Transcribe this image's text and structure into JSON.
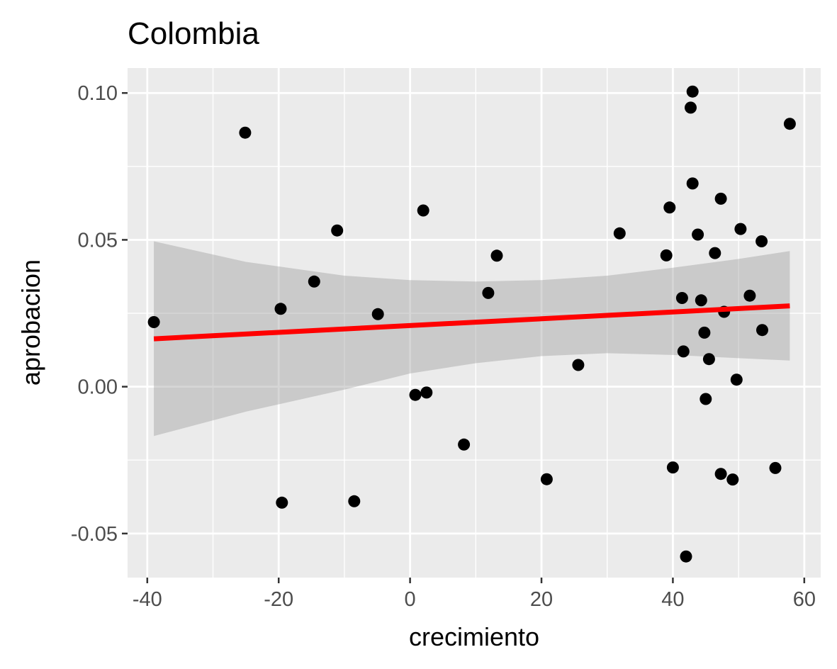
{
  "chart_data": {
    "type": "scatter",
    "title": "Colombia",
    "xlabel": "crecimiento",
    "ylabel": "aprobacion",
    "xlim": [
      -43,
      62.5
    ],
    "ylim": [
      -0.065,
      0.1085
    ],
    "x_ticks": [
      -40,
      -20,
      0,
      20,
      40,
      60
    ],
    "x_tick_labels": [
      "-40",
      "-20",
      "0",
      "20",
      "40",
      "60"
    ],
    "y_ticks": [
      -0.05,
      0.0,
      0.05,
      0.1
    ],
    "y_tick_labels": [
      "-0.05",
      "0.00",
      "0.05",
      "0.10"
    ],
    "grid": true,
    "points": [
      {
        "x": -39,
        "y": 0.022
      },
      {
        "x": -25.1,
        "y": 0.0865
      },
      {
        "x": -19.7,
        "y": 0.0265
      },
      {
        "x": -19.5,
        "y": -0.0395
      },
      {
        "x": -14.6,
        "y": 0.0358
      },
      {
        "x": -11.1,
        "y": 0.0532
      },
      {
        "x": -8.5,
        "y": -0.039
      },
      {
        "x": -4.9,
        "y": 0.0247
      },
      {
        "x": 0.8,
        "y": -0.0028
      },
      {
        "x": 2.0,
        "y": 0.06
      },
      {
        "x": 2.5,
        "y": -0.002
      },
      {
        "x": 8.2,
        "y": -0.0197
      },
      {
        "x": 11.9,
        "y": 0.0319
      },
      {
        "x": 13.2,
        "y": 0.0446
      },
      {
        "x": 20.8,
        "y": -0.0315
      },
      {
        "x": 25.6,
        "y": 0.0074
      },
      {
        "x": 31.9,
        "y": 0.0522
      },
      {
        "x": 39.0,
        "y": 0.0447
      },
      {
        "x": 39.5,
        "y": 0.061
      },
      {
        "x": 40.0,
        "y": -0.0275
      },
      {
        "x": 41.4,
        "y": 0.0302
      },
      {
        "x": 41.6,
        "y": 0.012
      },
      {
        "x": 42.0,
        "y": -0.0578
      },
      {
        "x": 42.7,
        "y": 0.095
      },
      {
        "x": 43.0,
        "y": 0.1005
      },
      {
        "x": 43.0,
        "y": 0.0692
      },
      {
        "x": 43.8,
        "y": 0.0518
      },
      {
        "x": 44.3,
        "y": 0.0294
      },
      {
        "x": 44.8,
        "y": 0.0184
      },
      {
        "x": 45.0,
        "y": -0.0042
      },
      {
        "x": 45.5,
        "y": 0.0094
      },
      {
        "x": 46.4,
        "y": 0.0455
      },
      {
        "x": 47.3,
        "y": -0.0297
      },
      {
        "x": 47.3,
        "y": 0.064
      },
      {
        "x": 47.8,
        "y": 0.0255
      },
      {
        "x": 49.1,
        "y": -0.0316
      },
      {
        "x": 49.7,
        "y": 0.0024
      },
      {
        "x": 50.3,
        "y": 0.0537
      },
      {
        "x": 51.7,
        "y": 0.031
      },
      {
        "x": 53.5,
        "y": 0.0495
      },
      {
        "x": 53.6,
        "y": 0.0193
      },
      {
        "x": 55.6,
        "y": -0.0277
      },
      {
        "x": 57.8,
        "y": 0.0895
      }
    ],
    "fit_line": {
      "x": [
        -39,
        57.8
      ],
      "y": [
        0.0163,
        0.0275
      ]
    },
    "confidence_band": {
      "x": [
        -39,
        -25,
        -10,
        0,
        10,
        20,
        30,
        40,
        50,
        57.8
      ],
      "upper": [
        0.0495,
        0.0425,
        0.0378,
        0.0363,
        0.0358,
        0.0363,
        0.0378,
        0.0405,
        0.0435,
        0.0462
      ],
      "lower": [
        -0.0168,
        -0.0085,
        -0.001,
        0.0045,
        0.008,
        0.0104,
        0.0114,
        0.0108,
        0.0097,
        0.0089
      ]
    },
    "colors": {
      "panel": "#ebebeb",
      "grid": "#ffffff",
      "points": "#000000",
      "fit_line": "#ff0000",
      "band": "#999999"
    }
  }
}
